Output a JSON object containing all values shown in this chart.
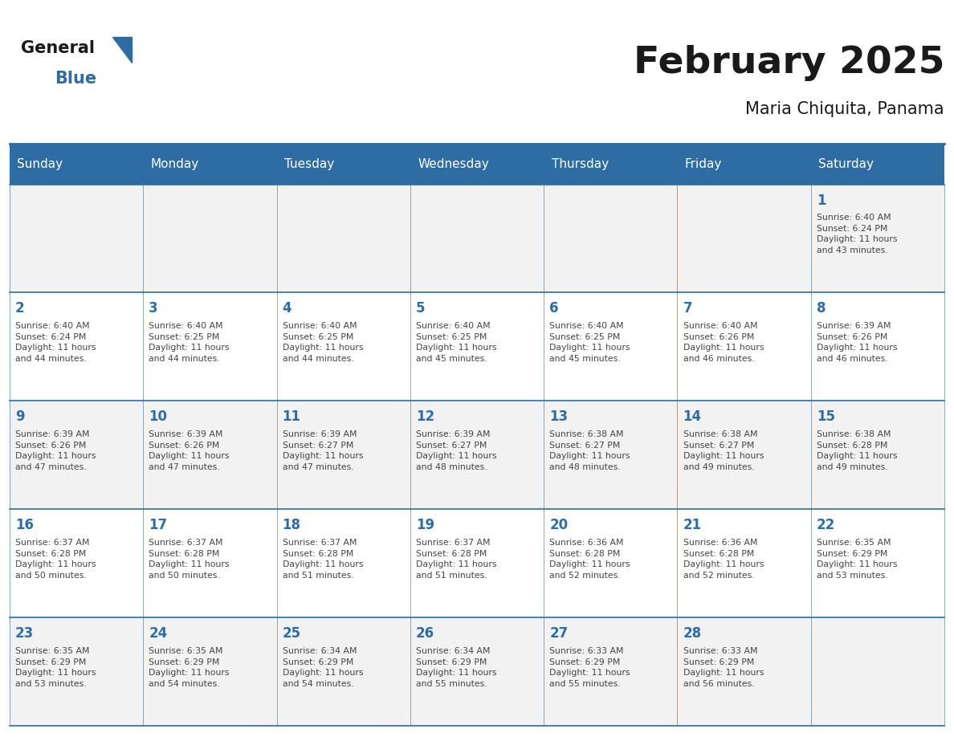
{
  "title": "February 2025",
  "subtitle": "Maria Chiquita, Panama",
  "days_of_week": [
    "Sunday",
    "Monday",
    "Tuesday",
    "Wednesday",
    "Thursday",
    "Friday",
    "Saturday"
  ],
  "header_bg": "#2E6DA4",
  "header_text": "#FFFFFF",
  "cell_bg_light": "#F2F2F2",
  "cell_bg_white": "#FFFFFF",
  "border_color": "#2E6DA4",
  "day_number_color": "#2E6DA4",
  "text_color": "#444444",
  "calendar_data": [
    [
      null,
      null,
      null,
      null,
      null,
      null,
      {
        "day": 1,
        "sunrise": "6:40 AM",
        "sunset": "6:24 PM",
        "daylight": "11 hours\nand 43 minutes."
      }
    ],
    [
      {
        "day": 2,
        "sunrise": "6:40 AM",
        "sunset": "6:24 PM",
        "daylight": "11 hours\nand 44 minutes."
      },
      {
        "day": 3,
        "sunrise": "6:40 AM",
        "sunset": "6:25 PM",
        "daylight": "11 hours\nand 44 minutes."
      },
      {
        "day": 4,
        "sunrise": "6:40 AM",
        "sunset": "6:25 PM",
        "daylight": "11 hours\nand 44 minutes."
      },
      {
        "day": 5,
        "sunrise": "6:40 AM",
        "sunset": "6:25 PM",
        "daylight": "11 hours\nand 45 minutes."
      },
      {
        "day": 6,
        "sunrise": "6:40 AM",
        "sunset": "6:25 PM",
        "daylight": "11 hours\nand 45 minutes."
      },
      {
        "day": 7,
        "sunrise": "6:40 AM",
        "sunset": "6:26 PM",
        "daylight": "11 hours\nand 46 minutes."
      },
      {
        "day": 8,
        "sunrise": "6:39 AM",
        "sunset": "6:26 PM",
        "daylight": "11 hours\nand 46 minutes."
      }
    ],
    [
      {
        "day": 9,
        "sunrise": "6:39 AM",
        "sunset": "6:26 PM",
        "daylight": "11 hours\nand 47 minutes."
      },
      {
        "day": 10,
        "sunrise": "6:39 AM",
        "sunset": "6:26 PM",
        "daylight": "11 hours\nand 47 minutes."
      },
      {
        "day": 11,
        "sunrise": "6:39 AM",
        "sunset": "6:27 PM",
        "daylight": "11 hours\nand 47 minutes."
      },
      {
        "day": 12,
        "sunrise": "6:39 AM",
        "sunset": "6:27 PM",
        "daylight": "11 hours\nand 48 minutes."
      },
      {
        "day": 13,
        "sunrise": "6:38 AM",
        "sunset": "6:27 PM",
        "daylight": "11 hours\nand 48 minutes."
      },
      {
        "day": 14,
        "sunrise": "6:38 AM",
        "sunset": "6:27 PM",
        "daylight": "11 hours\nand 49 minutes."
      },
      {
        "day": 15,
        "sunrise": "6:38 AM",
        "sunset": "6:28 PM",
        "daylight": "11 hours\nand 49 minutes."
      }
    ],
    [
      {
        "day": 16,
        "sunrise": "6:37 AM",
        "sunset": "6:28 PM",
        "daylight": "11 hours\nand 50 minutes."
      },
      {
        "day": 17,
        "sunrise": "6:37 AM",
        "sunset": "6:28 PM",
        "daylight": "11 hours\nand 50 minutes."
      },
      {
        "day": 18,
        "sunrise": "6:37 AM",
        "sunset": "6:28 PM",
        "daylight": "11 hours\nand 51 minutes."
      },
      {
        "day": 19,
        "sunrise": "6:37 AM",
        "sunset": "6:28 PM",
        "daylight": "11 hours\nand 51 minutes."
      },
      {
        "day": 20,
        "sunrise": "6:36 AM",
        "sunset": "6:28 PM",
        "daylight": "11 hours\nand 52 minutes."
      },
      {
        "day": 21,
        "sunrise": "6:36 AM",
        "sunset": "6:28 PM",
        "daylight": "11 hours\nand 52 minutes."
      },
      {
        "day": 22,
        "sunrise": "6:35 AM",
        "sunset": "6:29 PM",
        "daylight": "11 hours\nand 53 minutes."
      }
    ],
    [
      {
        "day": 23,
        "sunrise": "6:35 AM",
        "sunset": "6:29 PM",
        "daylight": "11 hours\nand 53 minutes."
      },
      {
        "day": 24,
        "sunrise": "6:35 AM",
        "sunset": "6:29 PM",
        "daylight": "11 hours\nand 54 minutes."
      },
      {
        "day": 25,
        "sunrise": "6:34 AM",
        "sunset": "6:29 PM",
        "daylight": "11 hours\nand 54 minutes."
      },
      {
        "day": 26,
        "sunrise": "6:34 AM",
        "sunset": "6:29 PM",
        "daylight": "11 hours\nand 55 minutes."
      },
      {
        "day": 27,
        "sunrise": "6:33 AM",
        "sunset": "6:29 PM",
        "daylight": "11 hours\nand 55 minutes."
      },
      {
        "day": 28,
        "sunrise": "6:33 AM",
        "sunset": "6:29 PM",
        "daylight": "11 hours\nand 56 minutes."
      },
      null
    ]
  ],
  "logo_text_general": "General",
  "logo_text_blue": "Blue",
  "logo_color_general": "#1a1a1a",
  "logo_color_blue": "#2E6DA4",
  "logo_triangle_color": "#2E6DA4"
}
